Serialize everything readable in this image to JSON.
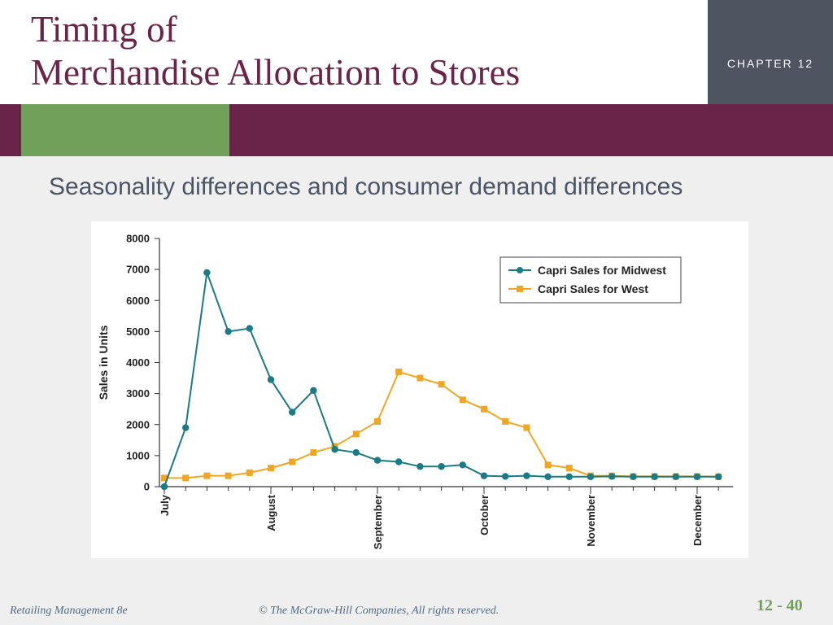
{
  "slide": {
    "title_line1": "Timing of",
    "title_line2": "Merchandise Allocation to Stores",
    "chapter_label": "CHAPTER 12",
    "subtitle": "Seasonality differences and consumer demand differences",
    "footer_left": "Retailing Management 8e",
    "footer_center": "© The McGraw-Hill Companies, All rights reserved.",
    "slide_number": "12 - 40",
    "colors": {
      "title": "#6a2449",
      "band": "#6a2449",
      "band_accent": "#71a05a",
      "chapter_box": "#4e5561"
    }
  },
  "chart_data": {
    "type": "line",
    "ylabel": "Sales in Units",
    "ylim": [
      0,
      8000
    ],
    "yticks": [
      0,
      1000,
      2000,
      3000,
      4000,
      5000,
      6000,
      7000,
      8000
    ],
    "month_labels": [
      "July",
      "August",
      "September",
      "October",
      "November",
      "December"
    ],
    "month_positions": [
      0,
      5,
      10,
      15,
      20,
      25
    ],
    "x": [
      0,
      1,
      2,
      3,
      4,
      5,
      6,
      7,
      8,
      9,
      10,
      11,
      12,
      13,
      14,
      15,
      16,
      17,
      18,
      19,
      20,
      21,
      22,
      23,
      24,
      25,
      26
    ],
    "legend_position": "top-right",
    "grid": false,
    "series": [
      {
        "name": "Capri Sales for Midwest",
        "color": "#1a7a86",
        "marker": "circle",
        "values": [
          0,
          1900,
          6900,
          5000,
          5100,
          3450,
          2400,
          3100,
          1200,
          1100,
          850,
          800,
          650,
          650,
          700,
          350,
          330,
          350,
          320,
          320,
          320,
          330,
          320,
          320,
          320,
          320,
          320
        ]
      },
      {
        "name": "Capri Sales for West",
        "color": "#f0a622",
        "marker": "square",
        "values": [
          280,
          280,
          350,
          350,
          450,
          600,
          800,
          1100,
          1300,
          1700,
          2100,
          3700,
          3500,
          3300,
          2800,
          2500,
          2100,
          1900,
          700,
          600,
          350,
          350,
          330,
          330,
          330,
          330,
          320
        ]
      }
    ]
  }
}
